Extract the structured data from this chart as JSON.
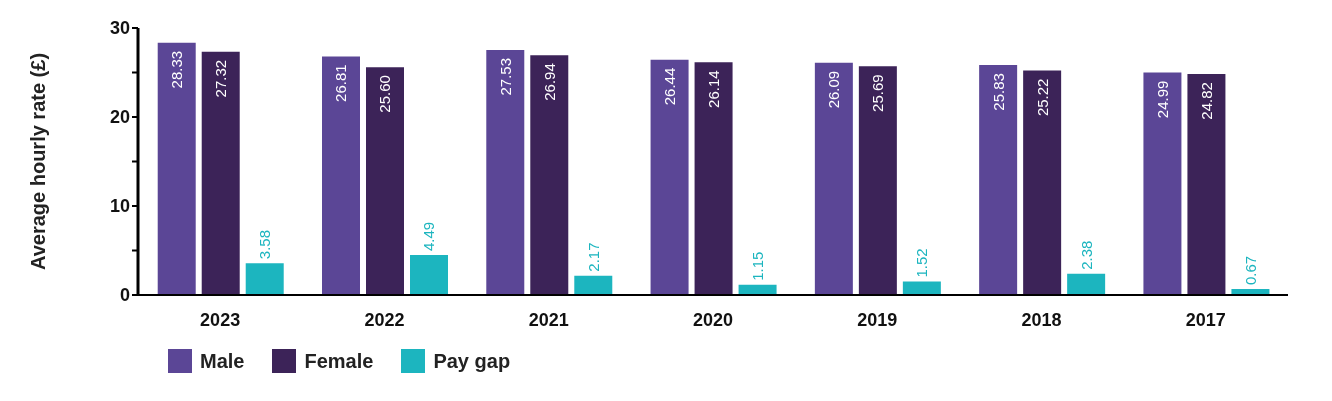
{
  "chart_data": {
    "type": "bar",
    "ylabel": "Average hourly rate (£)",
    "categories": [
      "2023",
      "2022",
      "2021",
      "2020",
      "2019",
      "2018",
      "2017"
    ],
    "series": [
      {
        "name": "Male",
        "color": "#5b4696",
        "values": [
          28.33,
          26.81,
          27.53,
          26.44,
          26.09,
          25.83,
          24.99
        ],
        "value_labels": [
          "28.33",
          "26.81",
          "27.53",
          "26.44",
          "26.09",
          "25.83",
          "24.99"
        ]
      },
      {
        "name": "Female",
        "color": "#3c2358",
        "values": [
          27.32,
          25.6,
          26.94,
          26.14,
          25.69,
          25.22,
          24.82
        ],
        "value_labels": [
          "27.32",
          "25.60",
          "26.94",
          "26.14",
          "25.69",
          "25.22",
          "24.82"
        ]
      },
      {
        "name": "Pay gap",
        "color": "#1cb5bf",
        "values": [
          3.58,
          4.49,
          2.17,
          1.15,
          1.52,
          2.38,
          0.67
        ],
        "value_labels": [
          "3.58",
          "4.49",
          "2.17",
          "1.15",
          "1.52",
          "2.38",
          "0.67"
        ]
      }
    ],
    "ylim": [
      0,
      30
    ],
    "yticks": [
      0,
      {
        "value": 5,
        "label": null
      },
      10,
      {
        "value": 15,
        "label": null
      },
      20,
      {
        "value": 25,
        "label": null
      },
      30
    ],
    "legend": "bottom left"
  }
}
